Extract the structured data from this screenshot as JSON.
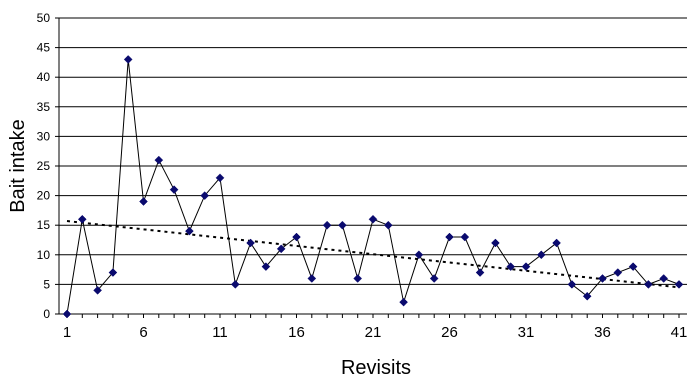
{
  "chart_data": {
    "type": "line",
    "xlabel": "Revisits",
    "ylabel": "Bait intake",
    "xlim": [
      1,
      41
    ],
    "ylim": [
      0,
      50
    ],
    "y_ticks": [
      0,
      5,
      10,
      15,
      20,
      25,
      30,
      35,
      40,
      45,
      50
    ],
    "x_ticks": [
      1,
      6,
      11,
      16,
      21,
      26,
      31,
      36,
      41
    ],
    "grid": "horizontal",
    "legend": "none",
    "series": [
      {
        "x": [
          1,
          2,
          3,
          4,
          5,
          6,
          7,
          8,
          9,
          10,
          11,
          12,
          13,
          14,
          15,
          16,
          17,
          18,
          19,
          20,
          21,
          22,
          23,
          24,
          25,
          26,
          27,
          28,
          29,
          30,
          31,
          32,
          33,
          34,
          35,
          36,
          37,
          38,
          39,
          40,
          41
        ],
        "values": [
          0,
          16,
          4,
          7,
          43,
          19,
          26,
          21,
          14,
          20,
          23,
          5,
          12,
          8,
          11,
          13,
          6,
          15,
          15,
          6,
          16,
          15,
          2,
          10,
          6,
          13,
          13,
          7,
          12,
          8,
          8,
          10,
          12,
          5,
          3,
          6,
          7,
          8,
          5,
          6,
          5
        ],
        "color": "#000000",
        "marker_color": "#0a0a6e",
        "marker": "diamond"
      }
    ],
    "trendline": {
      "style": "dotted",
      "color": "#000000",
      "start": [
        1,
        15.7
      ],
      "end": [
        41,
        4.5
      ]
    }
  }
}
